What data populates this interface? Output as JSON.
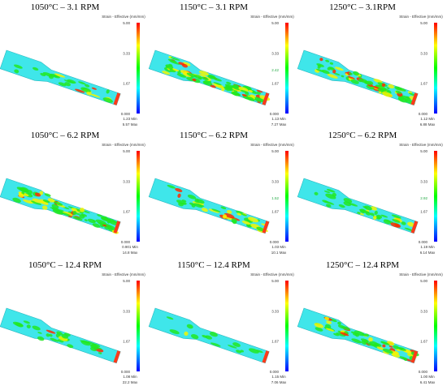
{
  "legend_title": "Strain - Effective (mm/mm)",
  "colorbar_ticks": [
    "5.00",
    "3.33",
    "1.67",
    "0.000"
  ],
  "panels": [
    {
      "title": "1050°C – 3.1 RPM",
      "min": "1.23 Min",
      "max": "5.57 Max"
    },
    {
      "title": "1150°C – 3.1 RPM",
      "min": "1.13 Min",
      "max": "7.27 Max",
      "marker": "2.42"
    },
    {
      "title": "1250°C – 3.1RPM",
      "min": "1.12 Min",
      "max": "6.88 Max"
    },
    {
      "title": "1050°C – 6.2 RPM",
      "min": "0.901 Min",
      "max": "14.8 Max"
    },
    {
      "title": "1150°C – 6.2 RPM",
      "min": "1.03 Min",
      "max": "10.1 Max",
      "marker": "1.52"
    },
    {
      "title": "1250°C – 6.2 RPM",
      "min": "1.19 Min",
      "max": "6.14 Max",
      "marker": "2.92"
    },
    {
      "title": "1050°C – 12.4 RPM",
      "min": "1.08 Min",
      "max": "22.2 Max"
    },
    {
      "title": "1150°C – 12.4 RPM",
      "min": "1.15 Min",
      "max": "7.06 Max"
    },
    {
      "title": "1250°C – 12.4 RPM",
      "min": "1.00 Min",
      "max": "6.41 Max"
    }
  ]
}
